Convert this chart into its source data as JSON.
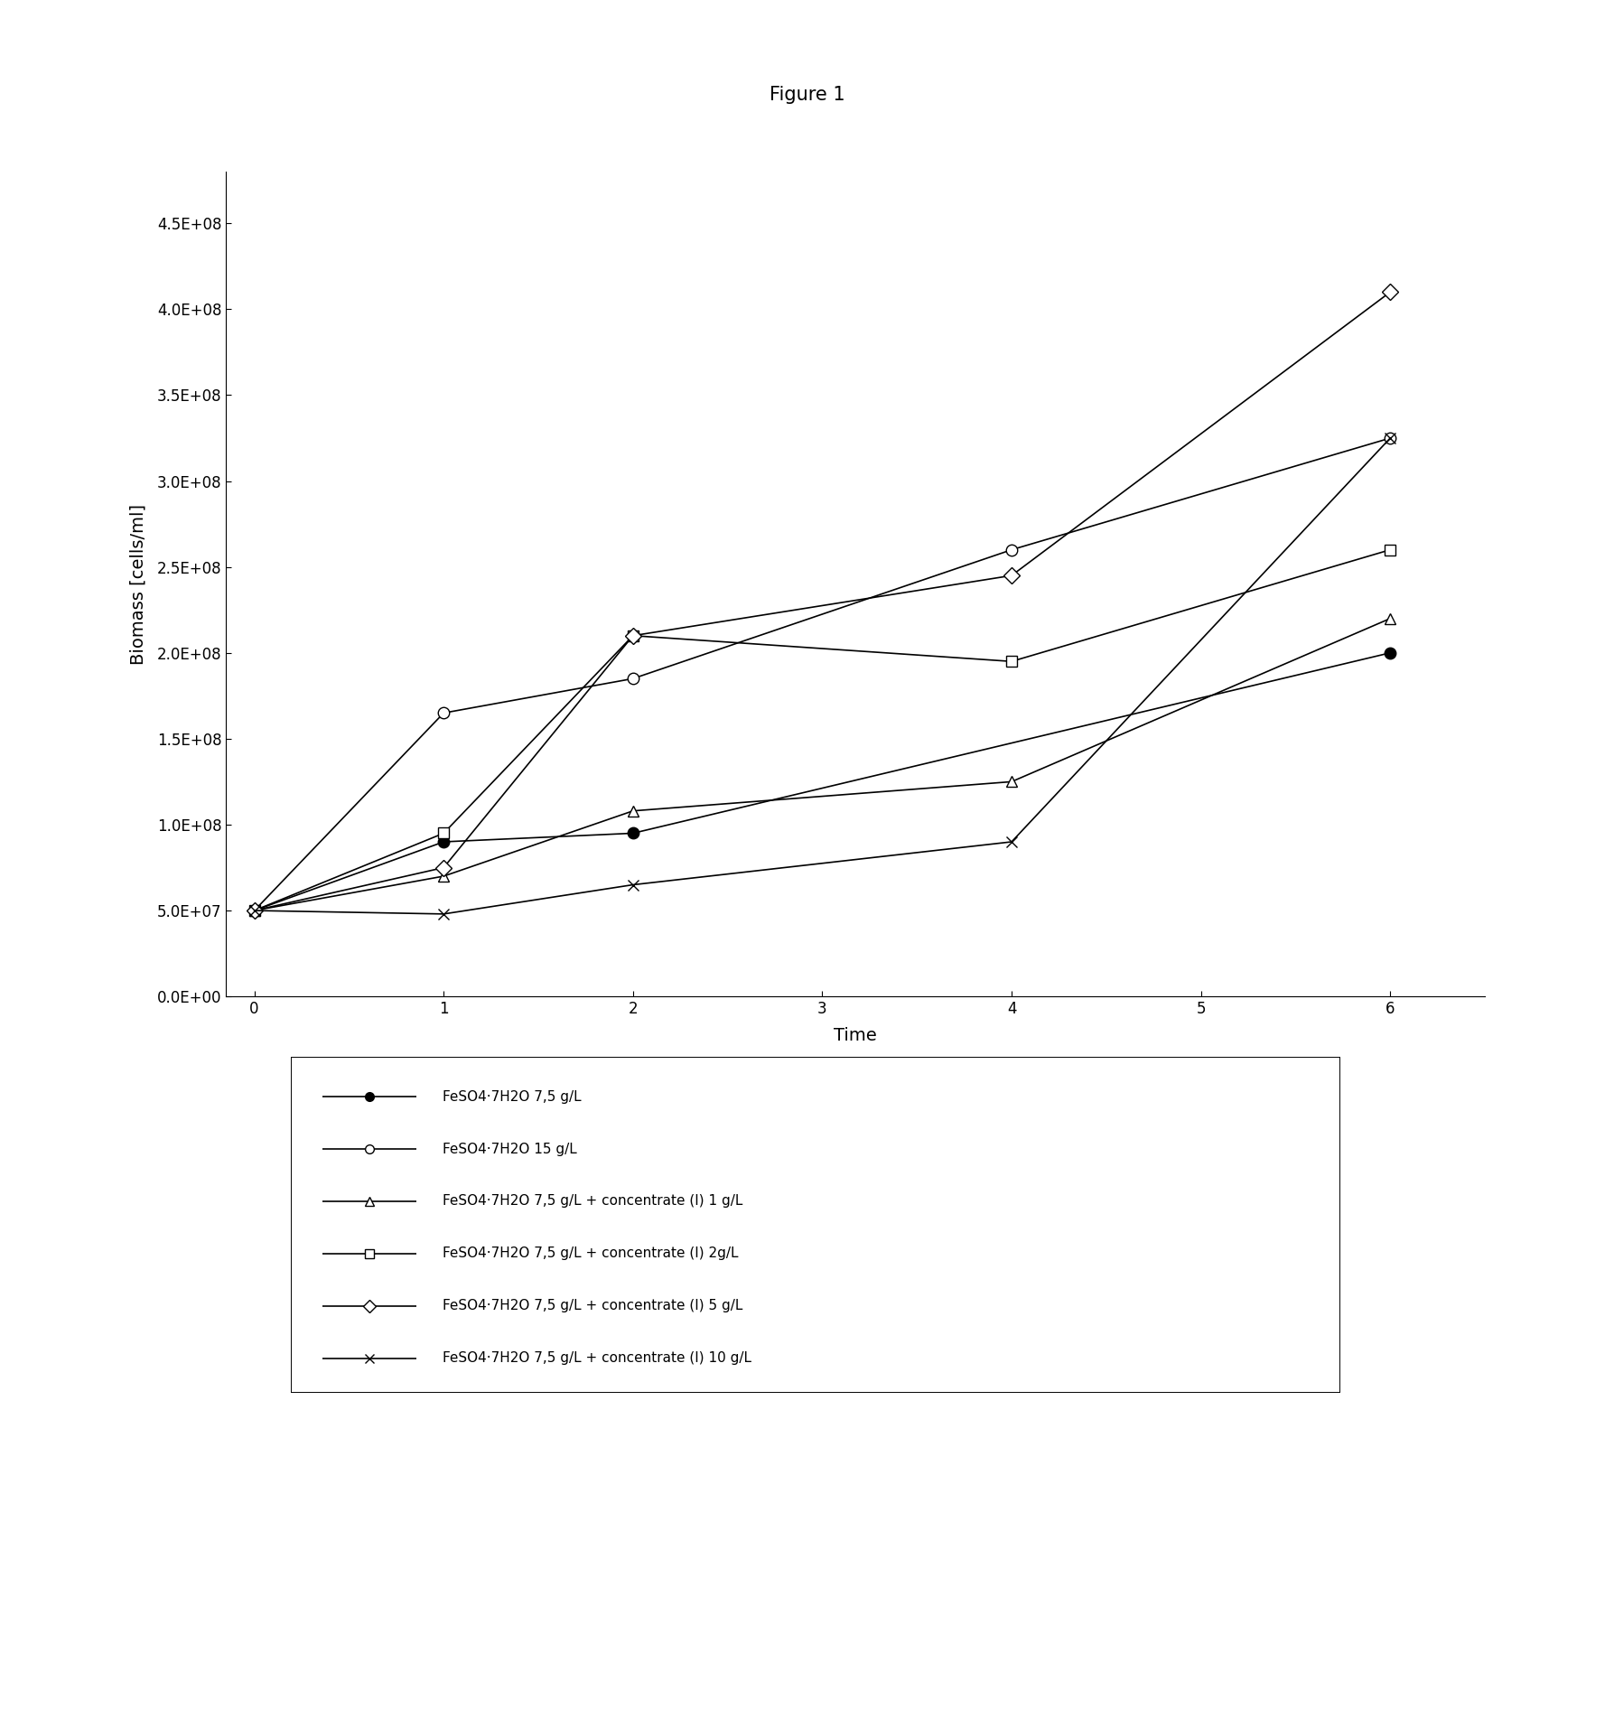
{
  "title": "Figure 1",
  "xlabel": "Time",
  "ylabel": "Biomass [cells/ml]",
  "xlim": [
    -0.15,
    6.5
  ],
  "ylim": [
    0,
    480000000.0
  ],
  "yticks": [
    0.0,
    50000000.0,
    100000000.0,
    150000000.0,
    200000000.0,
    250000000.0,
    300000000.0,
    350000000.0,
    400000000.0,
    450000000.0
  ],
  "xticks": [
    0,
    1,
    2,
    3,
    4,
    5,
    6
  ],
  "series": [
    {
      "label": "FeSO4·7H2O 7,5 g/L",
      "x": [
        0,
        1,
        2,
        6
      ],
      "y": [
        50000000.0,
        90000000.0,
        95000000.0,
        200000000.0
      ],
      "marker": "o",
      "marker_filled": true,
      "linewidth": 1.2,
      "markersize": 9
    },
    {
      "label": "FeSO4·7H2O 15 g/L",
      "x": [
        0,
        1,
        2,
        4,
        6
      ],
      "y": [
        50000000.0,
        165000000.0,
        185000000.0,
        260000000.0,
        325000000.0
      ],
      "marker": "o",
      "marker_filled": false,
      "linewidth": 1.2,
      "markersize": 9
    },
    {
      "label": "FeSO4·7H2O 7,5 g/L + concentrate (I) 1 g/L",
      "x": [
        0,
        1,
        2,
        4,
        6
      ],
      "y": [
        50000000.0,
        70000000.0,
        108000000.0,
        125000000.0,
        220000000.0
      ],
      "marker": "^",
      "marker_filled": false,
      "linewidth": 1.2,
      "markersize": 9
    },
    {
      "label": "FeSO4·7H2O 7,5 g/L + concentrate (I) 2g/L",
      "x": [
        0,
        1,
        2,
        4,
        6
      ],
      "y": [
        50000000.0,
        95000000.0,
        210000000.0,
        195000000.0,
        260000000.0
      ],
      "marker": "s",
      "marker_filled": false,
      "linewidth": 1.2,
      "markersize": 9
    },
    {
      "label": "FeSO4·7H2O 7,5 g/L + concentrate (I) 5 g/L",
      "x": [
        0,
        1,
        2,
        4,
        6
      ],
      "y": [
        50000000.0,
        75000000.0,
        210000000.0,
        245000000.0,
        410000000.0
      ],
      "marker": "D",
      "marker_filled": false,
      "linewidth": 1.2,
      "markersize": 9
    },
    {
      "label": "FeSO4·7H2O 7,5 g/L + concentrate (I) 10 g/L",
      "x": [
        0,
        1,
        2,
        4,
        6
      ],
      "y": [
        50000000.0,
        48000000.0,
        65000000.0,
        90000000.0,
        325000000.0
      ],
      "marker": "x",
      "marker_filled": false,
      "linewidth": 1.2,
      "markersize": 9
    }
  ],
  "background_color": "#ffffff",
  "fig_width": 17.87,
  "fig_height": 19.02,
  "title_fontsize": 15,
  "axis_label_fontsize": 14,
  "tick_fontsize": 12,
  "legend_fontsize": 11
}
